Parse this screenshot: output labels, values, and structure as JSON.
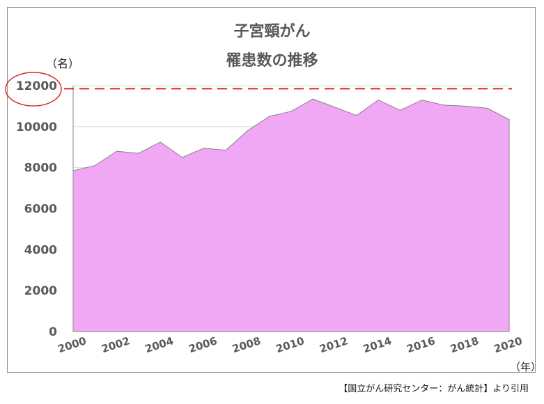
{
  "title_line1": "子宮頸がん",
  "title_line2": "罹患数の推移",
  "y_unit_label": "（名）",
  "x_unit_label": "（年）",
  "source_text": "【国立がん研究センター：がん統計】より引用",
  "colors": {
    "area_fill": "#f0a8f5",
    "area_stroke": "#8a7e8a",
    "reference_line": "#e0201e",
    "highlight_circle": "#d42a2a",
    "gridline": "#d9d9d9",
    "axis": "#888888"
  },
  "chart_data": {
    "type": "area",
    "title": "子宮頸がん 罹患数の推移",
    "x": [
      2000,
      2001,
      2002,
      2003,
      2004,
      2005,
      2006,
      2007,
      2008,
      2009,
      2010,
      2011,
      2012,
      2013,
      2014,
      2015,
      2016,
      2017,
      2018,
      2019,
      2020
    ],
    "values": [
      7850,
      8100,
      8800,
      8700,
      9250,
      8500,
      8950,
      8850,
      9800,
      10500,
      10750,
      11350,
      10950,
      10550,
      11300,
      10800,
      11300,
      11050,
      11000,
      10900,
      10350
    ],
    "x_tick_labels": [
      "2000",
      "2002",
      "2004",
      "2006",
      "2008",
      "2010",
      "2012",
      "2014",
      "2016",
      "2018",
      "2020"
    ],
    "y_tick_labels": [
      "0",
      "2000",
      "4000",
      "6000",
      "8000",
      "10000",
      "12000"
    ],
    "ylim": [
      0,
      12000
    ],
    "reference_line_value": 11850,
    "highlighted_tick": "12000",
    "grid": true,
    "legend": "none"
  }
}
